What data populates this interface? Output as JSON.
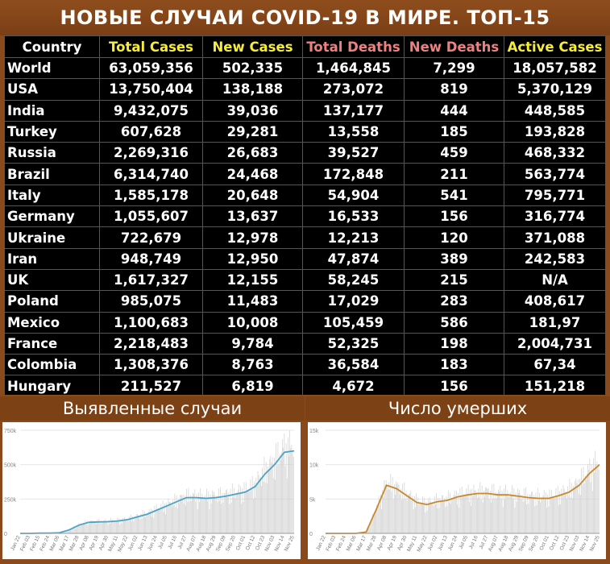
{
  "title": "НОВЫЕ СЛУЧАИ COVID-19 В МИРЕ. ТОП-15",
  "table": {
    "headers": [
      "Country",
      "Total Cases",
      "New Cases",
      "Total Deaths",
      "New Deaths",
      "Active Cases"
    ],
    "rows": [
      [
        "World",
        "63,059,356",
        "502,335",
        "1,464,845",
        "7,299",
        "18,057,582"
      ],
      [
        "USA",
        "13,750,404",
        "138,188",
        "273,072",
        "819",
        "5,370,129"
      ],
      [
        "India",
        "9,432,075",
        "39,036",
        "137,177",
        "444",
        "448,585"
      ],
      [
        "Turkey",
        "607,628",
        "29,281",
        "13,558",
        "185",
        "193,828"
      ],
      [
        "Russia",
        "2,269,316",
        "26,683",
        "39,527",
        "459",
        "468,332"
      ],
      [
        "Brazil",
        "6,314,740",
        "24,468",
        "172,848",
        "211",
        "563,774"
      ],
      [
        "Italy",
        "1,585,178",
        "20,648",
        "54,904",
        "541",
        "795,771"
      ],
      [
        "Germany",
        "1,055,607",
        "13,637",
        "16,533",
        "156",
        "316,774"
      ],
      [
        "Ukraine",
        "722,679",
        "12,978",
        "12,213",
        "120",
        "371,088"
      ],
      [
        "Iran",
        "948,749",
        "12,950",
        "47,874",
        "389",
        "242,583"
      ],
      [
        "UK",
        "1,617,327",
        "12,155",
        "58,245",
        "215",
        "N/A"
      ],
      [
        "Poland",
        "985,075",
        "11,483",
        "17,029",
        "283",
        "408,617"
      ],
      [
        "Mexico",
        "1,100,683",
        "10,008",
        "105,459",
        "586",
        "181,97"
      ],
      [
        "France",
        "2,218,483",
        "9,784",
        "52,325",
        "198",
        "2,004,731"
      ],
      [
        "Colombia",
        "1,308,376",
        "8,763",
        "36,584",
        "183",
        "67,34"
      ],
      [
        "Hungary",
        "211,527",
        "6,819",
        "4,672",
        "156",
        "151,218"
      ]
    ]
  },
  "colors": {
    "background": "#8a4a1c",
    "header_yellow": "#f6ec3a",
    "header_red": "#f08080",
    "cases_line": "#4aa3c8",
    "deaths_line": "#c8892e",
    "bars": "#c8c8c8"
  },
  "chart_data": [
    {
      "type": "bar",
      "title": "Выявленные случаи",
      "yticks": [
        "0",
        "250k",
        "500k",
        "750k"
      ],
      "ylim": [
        0,
        750000
      ],
      "xticks": [
        "Jan 22",
        "Feb 03",
        "Feb 15",
        "Feb 24",
        "Mar 06",
        "Mar 17",
        "Mar 28",
        "Apr 08",
        "Apr 19",
        "Apr 30",
        "May 11",
        "May 22",
        "Jun 02",
        "Jun 13",
        "Jun 24",
        "Jul 05",
        "Jul 16",
        "Jul 27",
        "Aug 07",
        "Aug 18",
        "Aug 29",
        "Sep 09",
        "Sep 20",
        "Oct 01",
        "Oct 12",
        "Oct 23",
        "Nov 03",
        "Nov 14",
        "Nov 25"
      ],
      "trend": [
        0,
        0,
        2000,
        2000,
        4000,
        25000,
        60000,
        80000,
        83000,
        85000,
        90000,
        100000,
        120000,
        140000,
        170000,
        200000,
        230000,
        260000,
        260000,
        255000,
        260000,
        270000,
        285000,
        300000,
        340000,
        430000,
        500000,
        590000,
        600000
      ]
    },
    {
      "type": "bar",
      "title": "Число умерших",
      "yticks": [
        "0",
        "5k",
        "10k",
        "15k"
      ],
      "ylim": [
        0,
        15000
      ],
      "xticks": [
        "Jan 22",
        "Feb 03",
        "Feb 24",
        "Mar 06",
        "Mar 17",
        "Mar 28",
        "Apr 08",
        "Apr 19",
        "Apr 30",
        "May 11",
        "May 22",
        "Jun 02",
        "Jun 13",
        "Jun 24",
        "Jul 05",
        "Jul 16",
        "Jul 27",
        "Aug 07",
        "Aug 18",
        "Aug 29",
        "Sep 09",
        "Sep 20",
        "Oct 01",
        "Oct 12",
        "Oct 23",
        "Nov 03",
        "Nov 14",
        "Nov 25"
      ],
      "trend": [
        0,
        0,
        0,
        0,
        200,
        3500,
        7000,
        6500,
        5500,
        4500,
        4200,
        4600,
        4800,
        5300,
        5600,
        5800,
        5800,
        5600,
        5600,
        5400,
        5200,
        5100,
        5100,
        5500,
        6000,
        7000,
        8700,
        10000
      ]
    }
  ]
}
